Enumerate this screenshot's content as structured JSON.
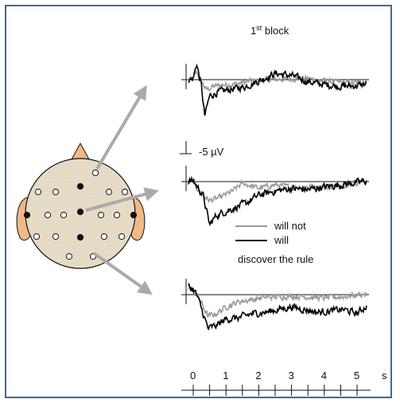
{
  "chart_data": {
    "type": "line",
    "title": "1st block",
    "title_parts": {
      "base": "1",
      "sup": "st",
      "rest": " block"
    },
    "scale_label": "-5 µV",
    "x_unit": "s",
    "x_ticks": [
      "0",
      "1",
      "2",
      "3",
      "4",
      "5"
    ],
    "xlim": [
      -0.4,
      5.4
    ],
    "legend": {
      "entries": [
        "will not",
        "will"
      ],
      "caption": "discover the rule"
    },
    "series": [
      {
        "name": "will not",
        "color": "#9a9a9a"
      },
      {
        "name": "will",
        "color": "#000000"
      }
    ],
    "panels": [
      {
        "electrode": "frontal",
        "will_not": [
          [
            -0.15,
            0
          ],
          [
            0,
            0.3
          ],
          [
            0.1,
            3.0
          ],
          [
            0.25,
            -0.6
          ],
          [
            0.4,
            -3.8
          ],
          [
            0.6,
            -2.6
          ],
          [
            0.9,
            -1.9
          ],
          [
            1.3,
            -1.6
          ],
          [
            1.7,
            -0.6
          ],
          [
            2.2,
            -0.2
          ],
          [
            2.8,
            0.3
          ],
          [
            3.4,
            0.5
          ],
          [
            4.0,
            -0.5
          ],
          [
            4.6,
            -1.2
          ],
          [
            5.3,
            -1.2
          ]
        ],
        "will": [
          [
            -0.15,
            0
          ],
          [
            0,
            0.3
          ],
          [
            0.1,
            6.0
          ],
          [
            0.25,
            -2.5
          ],
          [
            0.35,
            -13.5
          ],
          [
            0.5,
            -6.0
          ],
          [
            0.8,
            -4.5
          ],
          [
            1.2,
            -3.5
          ],
          [
            1.6,
            -2.5
          ],
          [
            2.0,
            -0.5
          ],
          [
            2.5,
            2.3
          ],
          [
            3.0,
            1.5
          ],
          [
            3.5,
            -0.8
          ],
          [
            4.0,
            -1.8
          ],
          [
            4.5,
            -2.5
          ],
          [
            5.0,
            -2.2
          ],
          [
            5.3,
            -1.5
          ]
        ]
      },
      {
        "electrode": "central",
        "will_not": [
          [
            -0.15,
            0
          ],
          [
            0,
            0.3
          ],
          [
            0.1,
            -2.0
          ],
          [
            0.25,
            -4.5
          ],
          [
            0.5,
            -7.0
          ],
          [
            0.8,
            -6.0
          ],
          [
            1.2,
            -3.5
          ],
          [
            1.5,
            -0.5
          ],
          [
            2.0,
            -2.5
          ],
          [
            2.5,
            -1.2
          ],
          [
            3.0,
            -2.2
          ],
          [
            3.5,
            -1.8
          ],
          [
            4.0,
            -2.0
          ],
          [
            4.5,
            -1.2
          ],
          [
            5.3,
            0.2
          ]
        ],
        "will": [
          [
            -0.15,
            0
          ],
          [
            0,
            0.3
          ],
          [
            0.1,
            -1.5
          ],
          [
            0.3,
            -5.0
          ],
          [
            0.5,
            -16.0
          ],
          [
            0.7,
            -12.5
          ],
          [
            1.0,
            -11.0
          ],
          [
            1.3,
            -9.5
          ],
          [
            1.6,
            -8.0
          ],
          [
            2.0,
            -5.0
          ],
          [
            2.5,
            -3.5
          ],
          [
            3.0,
            -2.5
          ],
          [
            3.5,
            -3.0
          ],
          [
            4.0,
            -2.0
          ],
          [
            4.5,
            -1.2
          ],
          [
            5.3,
            0.2
          ]
        ]
      },
      {
        "electrode": "parietal",
        "will_not": [
          [
            -0.15,
            2.5
          ],
          [
            0,
            1.5
          ],
          [
            0.1,
            0
          ],
          [
            0.25,
            -3.0
          ],
          [
            0.45,
            -8.0
          ],
          [
            0.7,
            -7.0
          ],
          [
            1.0,
            -4.5
          ],
          [
            1.4,
            -2.5
          ],
          [
            1.8,
            -1.8
          ],
          [
            2.2,
            -1.0
          ],
          [
            3.0,
            -0.5
          ],
          [
            3.5,
            -0.8
          ],
          [
            4.0,
            -1.2
          ],
          [
            4.5,
            -0.8
          ],
          [
            5.3,
            0.3
          ]
        ],
        "will": [
          [
            -0.15,
            3.0
          ],
          [
            0,
            2.0
          ],
          [
            0.1,
            0
          ],
          [
            0.25,
            -5.0
          ],
          [
            0.45,
            -12.5
          ],
          [
            0.7,
            -11.5
          ],
          [
            1.0,
            -9.0
          ],
          [
            1.4,
            -8.5
          ],
          [
            1.8,
            -7.0
          ],
          [
            2.2,
            -6.5
          ],
          [
            2.6,
            -5.5
          ],
          [
            3.0,
            -4.5
          ],
          [
            3.4,
            -5.5
          ],
          [
            3.8,
            -6.5
          ],
          [
            4.2,
            -6.0
          ],
          [
            4.6,
            -5.5
          ],
          [
            5.0,
            -7.0
          ],
          [
            5.3,
            -4.0
          ]
        ]
      }
    ],
    "head_map": {
      "electrodes_open": 15,
      "electrodes_filled": 5
    }
  },
  "colors": {
    "frame_border": "#3a6aa0",
    "head_fill": "#e6dcc6",
    "skin": "#f1b889",
    "arrow": "#aaaaaa"
  }
}
